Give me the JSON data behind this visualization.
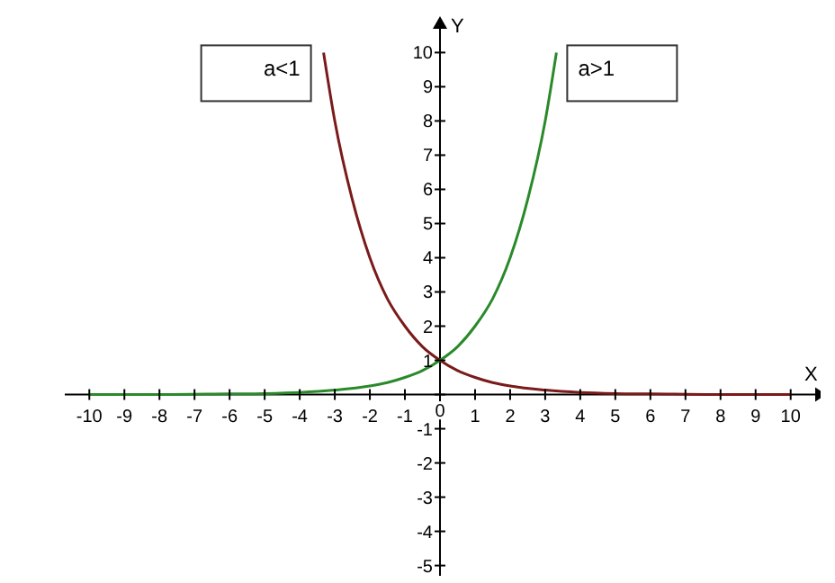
{
  "chart_data": {
    "type": "line",
    "xlabel": "X",
    "ylabel": "Y",
    "xlim": [
      -10.7,
      10.7
    ],
    "ylim": [
      -5.3,
      10.8
    ],
    "xticks": [
      -10,
      -9,
      -8,
      -7,
      -6,
      -5,
      -4,
      -3,
      -2,
      -1,
      0,
      1,
      2,
      3,
      4,
      5,
      6,
      7,
      8,
      9,
      10
    ],
    "yticks": [
      -5,
      -4,
      -3,
      -2,
      -1,
      {
        "value": 0,
        "label": null
      },
      1,
      2,
      3,
      4,
      5,
      6,
      7,
      8,
      9,
      10
    ],
    "marker": "none",
    "series": [
      {
        "name": "a<1",
        "color": "#7a1a1a",
        "x": [
          -3.32,
          -3,
          -2.5,
          -2,
          -1.5,
          -1,
          -0.5,
          0,
          0.5,
          1,
          1.5,
          2,
          3,
          4,
          5,
          6,
          8,
          10
        ],
        "values": [
          10,
          8,
          5.7,
          4,
          2.8,
          2,
          1.4,
          1,
          0.7,
          0.5,
          0.35,
          0.25,
          0.13,
          0.06,
          0.03,
          0.02,
          0,
          0
        ]
      },
      {
        "name": "a>1",
        "color": "#2a8a2a",
        "x": [
          -10,
          -8,
          -6,
          -5,
          -4,
          -3,
          -2,
          -1.5,
          -1,
          -0.5,
          0,
          0.5,
          1,
          1.5,
          2,
          2.5,
          3,
          3.32
        ],
        "values": [
          0,
          0,
          0.02,
          0.03,
          0.06,
          0.13,
          0.25,
          0.35,
          0.5,
          0.7,
          1,
          1.4,
          2,
          2.8,
          4,
          5.7,
          8,
          10
        ]
      }
    ]
  }
}
